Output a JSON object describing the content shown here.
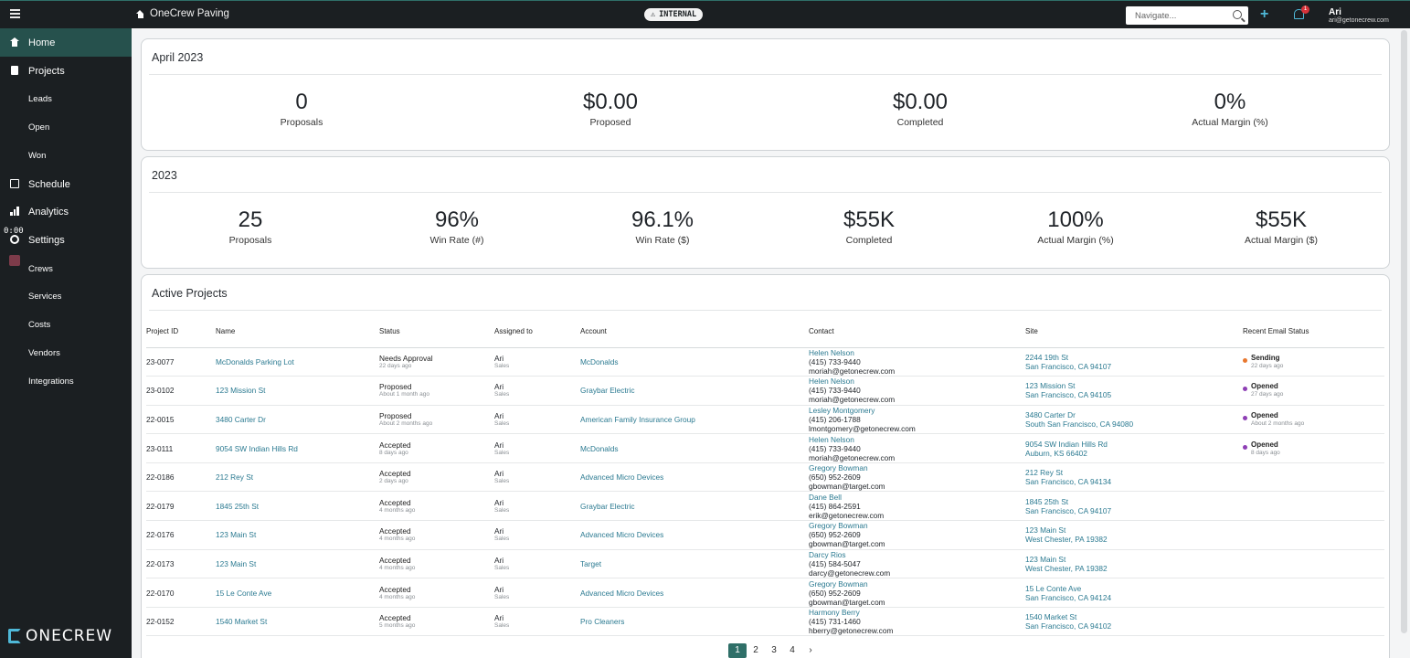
{
  "topbar": {
    "brand": "OneCrew Paving",
    "internal_badge": "INTERNAL",
    "navigate_placeholder": "Navigate...",
    "notification_count": "1",
    "user_name": "Ari",
    "user_email": "ari@getonecrew.com"
  },
  "sidebar": {
    "home": "Home",
    "projects": "Projects",
    "leads": "Leads",
    "open": "Open",
    "won": "Won",
    "schedule": "Schedule",
    "analytics": "Analytics",
    "settings": "Settings",
    "crews": "Crews",
    "services": "Services",
    "costs": "Costs",
    "vendors": "Vendors",
    "integrations": "Integrations",
    "timer": "0:00",
    "logo": "ONECREW"
  },
  "month_card": {
    "title": "April 2023",
    "stats": [
      {
        "value": "0",
        "label": "Proposals"
      },
      {
        "value": "$0.00",
        "label": "Proposed"
      },
      {
        "value": "$0.00",
        "label": "Completed"
      },
      {
        "value": "0%",
        "label": "Actual Margin (%)"
      }
    ]
  },
  "year_card": {
    "title": "2023",
    "stats": [
      {
        "value": "25",
        "label": "Proposals"
      },
      {
        "value": "96%",
        "label": "Win Rate (#)"
      },
      {
        "value": "96.1%",
        "label": "Win Rate ($)"
      },
      {
        "value": "$55K",
        "label": "Completed"
      },
      {
        "value": "100%",
        "label": "Actual Margin (%)"
      },
      {
        "value": "$55K",
        "label": "Actual Margin ($)"
      }
    ]
  },
  "projects_card": {
    "title": "Active Projects",
    "columns": [
      "Project ID",
      "Name",
      "Status",
      "Assigned to",
      "Account",
      "Contact",
      "Site",
      "Recent Email Status"
    ],
    "rows": [
      {
        "id": "23-0077",
        "name": "McDonalds Parking Lot",
        "status": "Needs Approval",
        "status_ago": "22 days ago",
        "assignee": "Ari",
        "role": "Sales",
        "account": "McDonalds",
        "contact_name": "Helen Nelson",
        "contact_phone": "(415) 733-9440",
        "contact_email": "moriah@getonecrew.com",
        "site_line1": "2244 19th St",
        "site_line2": "San Francisco, CA 94107",
        "email_status": "Sending",
        "email_ago": "22 days ago",
        "email_color": "#e8772e"
      },
      {
        "id": "23-0102",
        "name": "123 Mission St",
        "status": "Proposed",
        "status_ago": "About 1 month ago",
        "assignee": "Ari",
        "role": "Sales",
        "account": "Graybar Electric",
        "contact_name": "Helen Nelson",
        "contact_phone": "(415) 733-9440",
        "contact_email": "moriah@getonecrew.com",
        "site_line1": "123 Mission St",
        "site_line2": "San Francisco, CA 94105",
        "email_status": "Opened",
        "email_ago": "27 days ago",
        "email_color": "#8e3fb5"
      },
      {
        "id": "22-0015",
        "name": "3480 Carter Dr",
        "status": "Proposed",
        "status_ago": "About 2 months ago",
        "assignee": "Ari",
        "role": "Sales",
        "account": "American Family Insurance Group",
        "contact_name": "Lesley Montgomery",
        "contact_phone": "(415) 206-1788",
        "contact_email": "lmontgomery@getonecrew.com",
        "site_line1": "3480 Carter Dr",
        "site_line2": "South San Francisco, CA 94080",
        "email_status": "Opened",
        "email_ago": "About 2 months ago",
        "email_color": "#8e3fb5"
      },
      {
        "id": "23-0111",
        "name": "9054 SW Indian Hills Rd",
        "status": "Accepted",
        "status_ago": "8 days ago",
        "assignee": "Ari",
        "role": "Sales",
        "account": "McDonalds",
        "contact_name": "Helen Nelson",
        "contact_phone": "(415) 733-9440",
        "contact_email": "moriah@getonecrew.com",
        "site_line1": "9054 SW Indian Hills Rd",
        "site_line2": "Auburn, KS 66402",
        "email_status": "Opened",
        "email_ago": "8 days ago",
        "email_color": "#8e3fb5"
      },
      {
        "id": "22-0186",
        "name": "212 Rey St",
        "status": "Accepted",
        "status_ago": "2 days ago",
        "assignee": "Ari",
        "role": "Sales",
        "account": "Advanced Micro Devices",
        "contact_name": "Gregory Bowman",
        "contact_phone": "(650) 952-2609",
        "contact_email": "gbowman@target.com",
        "site_line1": "212 Rey St",
        "site_line2": "San Francisco, CA 94134",
        "email_status": "",
        "email_ago": "",
        "email_color": ""
      },
      {
        "id": "22-0179",
        "name": "1845 25th St",
        "status": "Accepted",
        "status_ago": "4 months ago",
        "assignee": "Ari",
        "role": "Sales",
        "account": "Graybar Electric",
        "contact_name": "Dane Bell",
        "contact_phone": "(415) 864-2591",
        "contact_email": "erik@getonecrew.com",
        "site_line1": "1845 25th St",
        "site_line2": "San Francisco, CA 94107",
        "email_status": "",
        "email_ago": "",
        "email_color": ""
      },
      {
        "id": "22-0176",
        "name": "123 Main St",
        "status": "Accepted",
        "status_ago": "4 months ago",
        "assignee": "Ari",
        "role": "Sales",
        "account": "Advanced Micro Devices",
        "contact_name": "Gregory Bowman",
        "contact_phone": "(650) 952-2609",
        "contact_email": "gbowman@target.com",
        "site_line1": "123 Main St",
        "site_line2": "West Chester, PA 19382",
        "email_status": "",
        "email_ago": "",
        "email_color": ""
      },
      {
        "id": "22-0173",
        "name": "123 Main St",
        "status": "Accepted",
        "status_ago": "4 months ago",
        "assignee": "Ari",
        "role": "Sales",
        "account": "Target",
        "contact_name": "Darcy Rios",
        "contact_phone": "(415) 584-5047",
        "contact_email": "darcy@getonecrew.com",
        "site_line1": "123 Main St",
        "site_line2": "West Chester, PA 19382",
        "email_status": "",
        "email_ago": "",
        "email_color": ""
      },
      {
        "id": "22-0170",
        "name": "15 Le Conte Ave",
        "status": "Accepted",
        "status_ago": "4 months ago",
        "assignee": "Ari",
        "role": "Sales",
        "account": "Advanced Micro Devices",
        "contact_name": "Gregory Bowman",
        "contact_phone": "(650) 952-2609",
        "contact_email": "gbowman@target.com",
        "site_line1": "15 Le Conte Ave",
        "site_line2": "San Francisco, CA 94124",
        "email_status": "",
        "email_ago": "",
        "email_color": ""
      },
      {
        "id": "22-0152",
        "name": "1540 Market St",
        "status": "Accepted",
        "status_ago": "5 months ago",
        "assignee": "Ari",
        "role": "Sales",
        "account": "Pro Cleaners",
        "contact_name": "Harmony Berry",
        "contact_phone": "(415) 731-1460",
        "contact_email": "hberry@getonecrew.com",
        "site_line1": "1540 Market St",
        "site_line2": "San Francisco, CA 94102",
        "email_status": "",
        "email_ago": "",
        "email_color": ""
      }
    ]
  },
  "pagination": {
    "pages": [
      "1",
      "2",
      "3",
      "4"
    ],
    "current": "1",
    "next": "›"
  }
}
